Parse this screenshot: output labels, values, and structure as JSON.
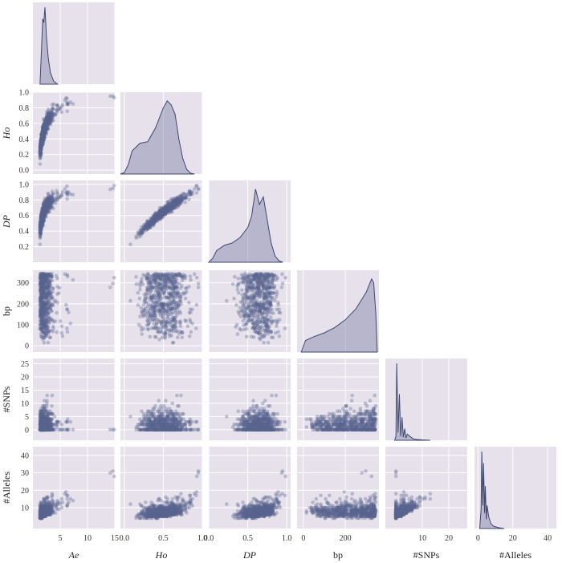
{
  "chart_data": {
    "type": "pairplot",
    "variables": [
      {
        "key": "Ae",
        "label": "Ae",
        "italic": true,
        "lim": [
          0,
          15
        ],
        "ticks": [
          5,
          10,
          15
        ],
        "kde": [
          [
            1.3,
            0
          ],
          [
            1.6,
            0.5
          ],
          [
            1.8,
            0.85
          ],
          [
            2.0,
            0.8
          ],
          [
            2.2,
            1.0
          ],
          [
            2.5,
            0.6
          ],
          [
            2.8,
            0.35
          ],
          [
            3.2,
            0.15
          ],
          [
            3.8,
            0.04
          ],
          [
            4.5,
            0
          ]
        ]
      },
      {
        "key": "Ho",
        "label": "Ho",
        "italic": true,
        "lim": [
          -0.05,
          1.0
        ],
        "ticks": [
          0.0,
          0.2,
          0.4,
          0.6,
          0.8,
          1.0
        ],
        "tickLabels": [
          "0.0",
          "0.2",
          "0.4",
          "0.6",
          "0.8",
          "1.0"
        ],
        "xticks": [
          0.0,
          0.5,
          1.0
        ],
        "xtickLabels": [
          "0.0",
          "0.5",
          "1.0"
        ],
        "kde": [
          [
            -0.05,
            0
          ],
          [
            0,
            0.02
          ],
          [
            0.05,
            0.12
          ],
          [
            0.1,
            0.3
          ],
          [
            0.2,
            0.4
          ],
          [
            0.3,
            0.42
          ],
          [
            0.4,
            0.6
          ],
          [
            0.5,
            0.86
          ],
          [
            0.55,
            0.95
          ],
          [
            0.6,
            0.9
          ],
          [
            0.65,
            0.78
          ],
          [
            0.7,
            0.45
          ],
          [
            0.75,
            0.2
          ],
          [
            0.8,
            0.06
          ],
          [
            0.85,
            0.01
          ],
          [
            0.9,
            0
          ]
        ]
      },
      {
        "key": "DP",
        "label": "DP",
        "italic": true,
        "lim": [
          0.0,
          1.05
        ],
        "ticks": [
          0.2,
          0.4,
          0.6,
          0.8,
          1.0
        ],
        "tickLabels": [
          "0.2",
          "0.4",
          "0.6",
          "0.8",
          "1.0"
        ],
        "xticks": [
          0.0,
          0.5,
          1.0
        ],
        "xtickLabels": [
          "0.0",
          "0.5",
          "1.0"
        ],
        "kde": [
          [
            0.0,
            0
          ],
          [
            0.05,
            0.05
          ],
          [
            0.1,
            0.15
          ],
          [
            0.2,
            0.22
          ],
          [
            0.3,
            0.25
          ],
          [
            0.4,
            0.32
          ],
          [
            0.5,
            0.45
          ],
          [
            0.55,
            0.6
          ],
          [
            0.6,
            0.95
          ],
          [
            0.65,
            0.75
          ],
          [
            0.7,
            0.85
          ],
          [
            0.75,
            0.55
          ],
          [
            0.8,
            0.25
          ],
          [
            0.85,
            0.08
          ],
          [
            0.9,
            0.02
          ],
          [
            0.95,
            0
          ]
        ]
      },
      {
        "key": "bp",
        "label": "bp",
        "italic": false,
        "lim": [
          -30,
          360
        ],
        "ticks": [
          0,
          100,
          200,
          300
        ],
        "xticks": [
          0,
          200
        ],
        "kde": [
          [
            -10,
            0
          ],
          [
            10,
            0.15
          ],
          [
            50,
            0.2
          ],
          [
            100,
            0.25
          ],
          [
            150,
            0.32
          ],
          [
            200,
            0.42
          ],
          [
            250,
            0.56
          ],
          [
            300,
            0.78
          ],
          [
            325,
            0.95
          ],
          [
            335,
            0.9
          ],
          [
            345,
            0.5
          ],
          [
            352,
            0
          ]
        ]
      },
      {
        "key": "SNPs",
        "label": "#SNPs",
        "italic": false,
        "lim": [
          -4,
          27
        ],
        "ticks": [
          0,
          5,
          10,
          15,
          20,
          25
        ],
        "xticks": [
          10,
          20
        ],
        "kde": [
          [
            -0.5,
            0
          ],
          [
            0,
            0.05
          ],
          [
            0.3,
            1.0
          ],
          [
            0.8,
            0.1
          ],
          [
            1.3,
            0.6
          ],
          [
            1.8,
            0.05
          ],
          [
            2.3,
            0.3
          ],
          [
            2.8,
            0.04
          ],
          [
            3.3,
            0.15
          ],
          [
            3.8,
            0.03
          ],
          [
            4.3,
            0.08
          ],
          [
            5.3,
            0.05
          ],
          [
            6.5,
            0.02
          ],
          [
            8,
            0.01
          ],
          [
            10,
            0.005
          ],
          [
            13,
            0
          ]
        ]
      },
      {
        "key": "Alleles",
        "label": "#Alleles",
        "italic": false,
        "lim": [
          -2,
          45
        ],
        "ticks": [
          10,
          20,
          30,
          40
        ],
        "xticks": [
          0,
          20,
          40
        ],
        "kde": [
          [
            1,
            0
          ],
          [
            1.8,
            0.25
          ],
          [
            2.2,
            1.0
          ],
          [
            2.8,
            0.3
          ],
          [
            3.2,
            0.85
          ],
          [
            3.8,
            0.2
          ],
          [
            4.2,
            0.55
          ],
          [
            4.8,
            0.12
          ],
          [
            5.2,
            0.3
          ],
          [
            6.2,
            0.15
          ],
          [
            7.5,
            0.06
          ],
          [
            9,
            0.03
          ],
          [
            12,
            0.01
          ],
          [
            15,
            0
          ]
        ]
      }
    ],
    "grid": true,
    "corner": true
  }
}
